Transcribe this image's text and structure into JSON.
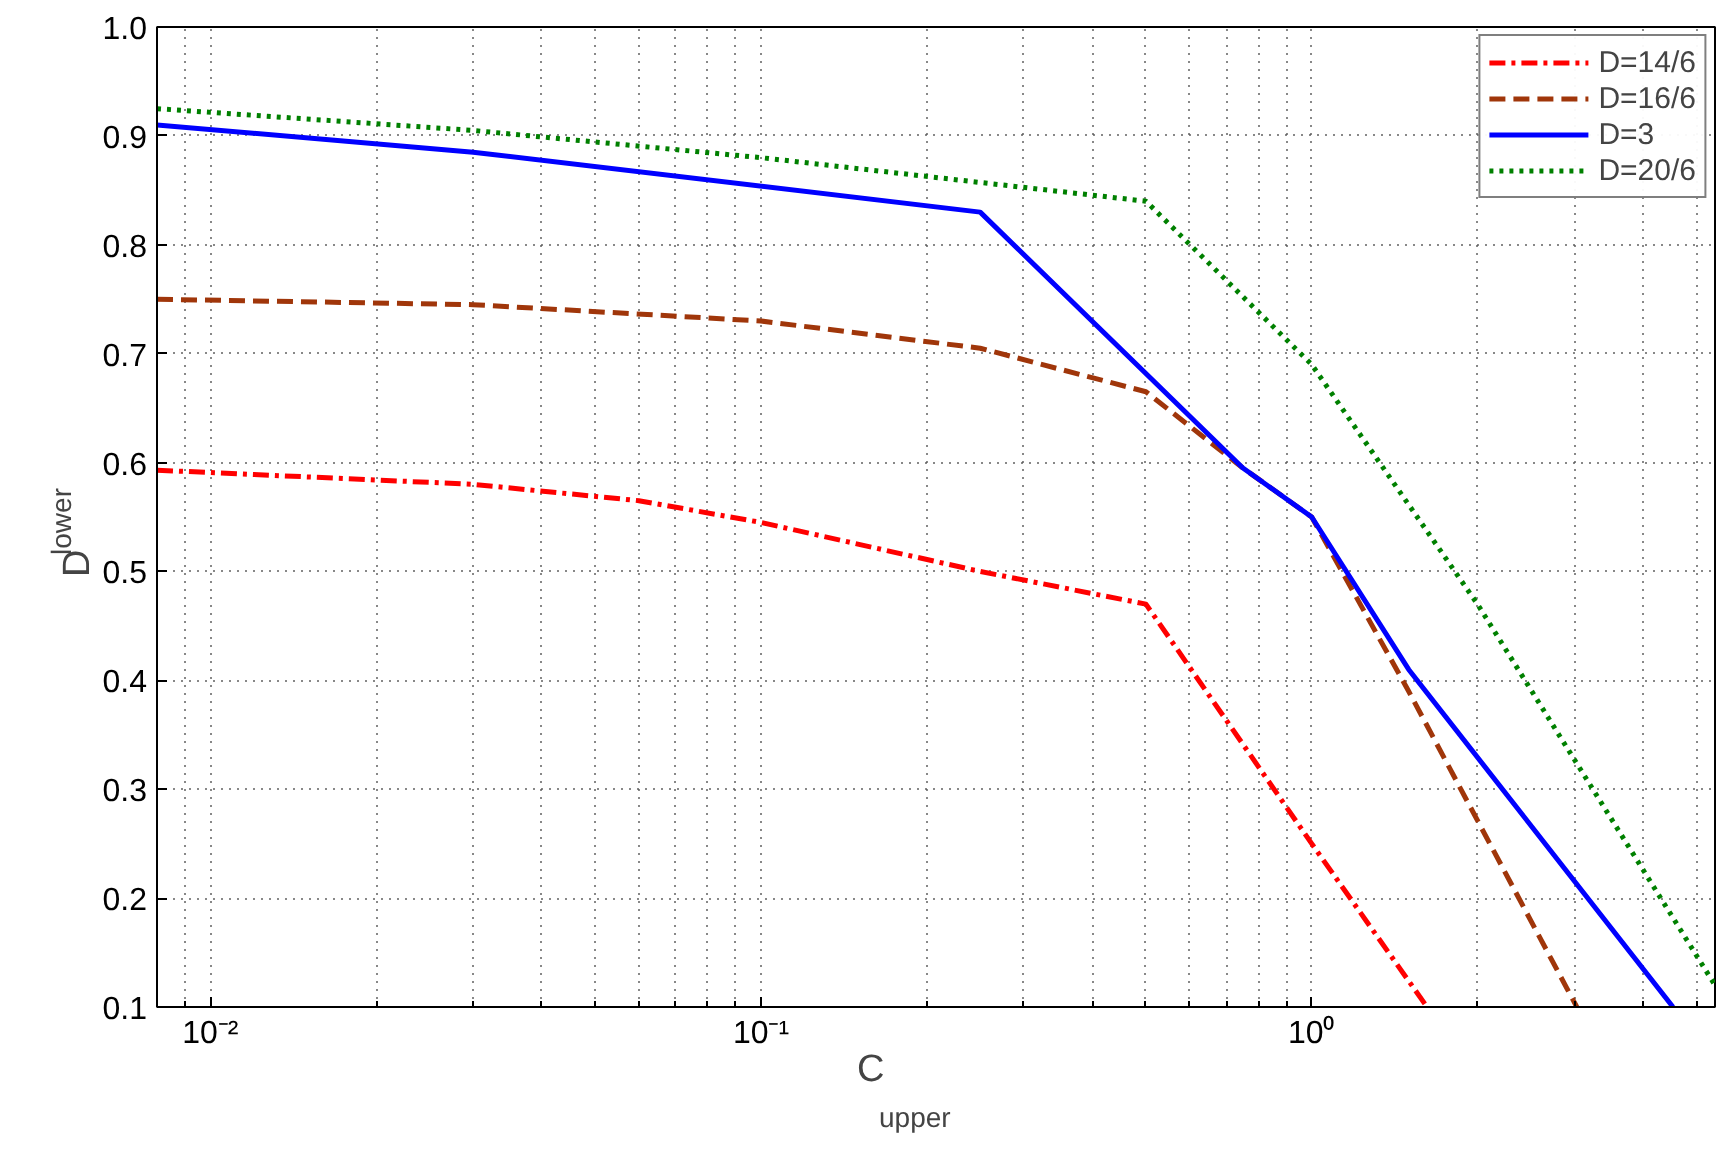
{
  "chart_data": {
    "type": "line",
    "xlabel": "C$_{upper}$",
    "ylabel": "D$_{lower}$",
    "log": "x",
    "xlim": [
      0.008,
      5.4
    ],
    "ylim": [
      0.1,
      1.0
    ],
    "xticks": [
      {
        "value": 0.01,
        "label": "10⁻²"
      },
      {
        "value": 0.1,
        "label": "10⁻¹"
      },
      {
        "value": 1,
        "label": "10⁰"
      }
    ],
    "yticks": [
      0.1,
      0.2,
      0.3,
      0.4,
      0.5,
      0.6,
      0.7,
      0.8,
      0.9,
      {
        "value": 1.0,
        "label": "1.0"
      }
    ],
    "grid": true,
    "legend": "top right",
    "marker": "none",
    "series": [
      {
        "name": "D=14/6",
        "color": "#ff0000",
        "line_style": "dashdot",
        "x": [
          0.008,
          0.03,
          0.06,
          0.1,
          0.25,
          0.5,
          1.0,
          1.62
        ],
        "values": [
          0.593,
          0.58,
          0.565,
          0.545,
          0.5,
          0.47,
          0.25,
          0.1
        ]
      },
      {
        "name": "D=16/6",
        "color": "#a0360a",
        "line_style": "dashed",
        "x": [
          0.008,
          0.03,
          0.1,
          0.25,
          0.5,
          0.75,
          1.0,
          1.5,
          3.03
        ],
        "values": [
          0.75,
          0.745,
          0.73,
          0.705,
          0.665,
          0.595,
          0.55,
          0.39,
          0.1
        ]
      },
      {
        "name": "D=3",
        "color": "#0000ff",
        "line_style": "solid",
        "x": [
          0.008,
          0.03,
          0.25,
          0.75,
          1.0,
          1.5,
          4.53
        ],
        "values": [
          0.91,
          0.885,
          0.83,
          0.595,
          0.55,
          0.41,
          0.1
        ]
      },
      {
        "name": "D=20/6",
        "color": "#008000",
        "line_style": "dotted",
        "x": [
          0.008,
          0.03,
          0.1,
          0.5,
          1.0,
          2.0,
          5.4
        ],
        "values": [
          0.925,
          0.905,
          0.88,
          0.84,
          0.69,
          0.47,
          0.12
        ]
      }
    ]
  }
}
